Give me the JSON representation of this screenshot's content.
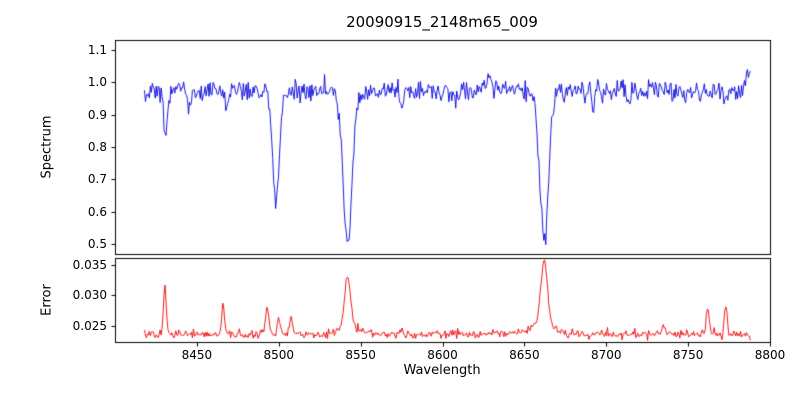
{
  "figure": {
    "background_color": "#ffffff"
  },
  "chart_data": [
    {
      "type": "line",
      "panel": "spectrum",
      "title": "20090915_2148m65_009",
      "ylabel": "Spectrum",
      "line_color": "#0000dd",
      "grid": false,
      "xlim": [
        8400,
        8800
      ],
      "ylim": [
        0.47,
        1.13
      ],
      "ytick_values": [
        0.5,
        0.6,
        0.7,
        0.8,
        0.9,
        1.0,
        1.1
      ],
      "ytick_labels": [
        "0.5",
        "0.6",
        "0.7",
        "0.8",
        "0.9",
        "1.0",
        "1.1"
      ],
      "x_data_range": [
        8418,
        8788
      ],
      "n_points": 620,
      "baseline": 0.972,
      "noise_std": 0.016,
      "features": [
        {
          "center": 8430.5,
          "amp": -0.14,
          "sigma": 1.0
        },
        {
          "center": 8445.0,
          "amp": -0.04,
          "sigma": 0.9
        },
        {
          "center": 8468.0,
          "amp": -0.045,
          "sigma": 0.9
        },
        {
          "center": 8498.3,
          "amp": -0.355,
          "sigma": 2.0
        },
        {
          "center": 8542.1,
          "amp": -0.475,
          "sigma": 2.7
        },
        {
          "center": 8575.0,
          "amp": -0.035,
          "sigma": 0.9
        },
        {
          "center": 8608.0,
          "amp": -0.03,
          "sigma": 0.9
        },
        {
          "center": 8628.0,
          "amp": 0.045,
          "sigma": 1.3
        },
        {
          "center": 8662.1,
          "amp": -0.455,
          "sigma": 2.7
        },
        {
          "center": 8692.0,
          "amp": -0.05,
          "sigma": 1.0
        },
        {
          "center": 8713.0,
          "amp": -0.035,
          "sigma": 0.9
        },
        {
          "center": 8788.0,
          "amp": 0.06,
          "sigma": 2.5
        }
      ]
    },
    {
      "type": "line",
      "panel": "error",
      "ylabel": "Error",
      "xlabel": "Wavelength",
      "line_color": "#ee0000",
      "grid": false,
      "xlim": [
        8400,
        8800
      ],
      "ylim": [
        0.0223,
        0.0362
      ],
      "ytick_values": [
        0.025,
        0.03,
        0.035
      ],
      "ytick_labels": [
        "0.025",
        "0.030",
        "0.035"
      ],
      "xtick_values": [
        8450,
        8500,
        8550,
        8600,
        8650,
        8700,
        8750,
        8800
      ],
      "xtick_labels": [
        "8450",
        "8500",
        "8550",
        "8600",
        "8650",
        "8700",
        "8750",
        "8800"
      ],
      "x_data_range": [
        8418,
        8788
      ],
      "n_points": 620,
      "baseline": 0.0236,
      "noise_std": 0.00035,
      "features": [
        {
          "center": 8430.5,
          "amp": 0.008,
          "sigma": 0.8
        },
        {
          "center": 8466.0,
          "amp": 0.005,
          "sigma": 0.8
        },
        {
          "center": 8493.0,
          "amp": 0.0042,
          "sigma": 1.1
        },
        {
          "center": 8500.0,
          "amp": 0.003,
          "sigma": 1.0
        },
        {
          "center": 8507.5,
          "amp": 0.0028,
          "sigma": 0.9
        },
        {
          "center": 8542.1,
          "amp": 0.0085,
          "sigma": 1.8
        },
        {
          "center": 8542.1,
          "amp": 0.0012,
          "sigma": 6.0
        },
        {
          "center": 8662.1,
          "amp": 0.0106,
          "sigma": 2.0
        },
        {
          "center": 8660.0,
          "amp": 0.0016,
          "sigma": 7.0
        },
        {
          "center": 8735.0,
          "amp": 0.0012,
          "sigma": 1.0
        },
        {
          "center": 8762.0,
          "amp": 0.004,
          "sigma": 1.0
        },
        {
          "center": 8773.0,
          "amp": 0.0048,
          "sigma": 0.8
        }
      ]
    }
  ]
}
